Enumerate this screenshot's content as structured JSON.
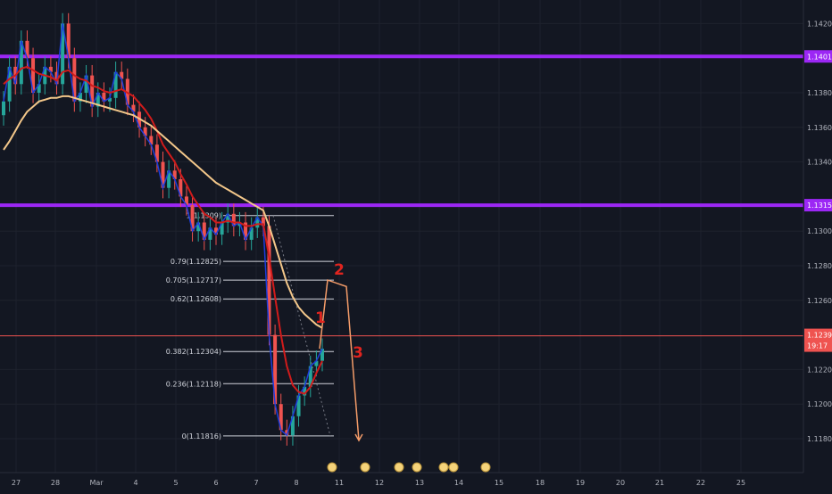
{
  "chart_data": {
    "type": "candlestick",
    "symbol_hint": "EURUSD",
    "price_axis": {
      "ticks": [
        "1.14200",
        "1.13800",
        "1.13600",
        "1.13400",
        "1.13000",
        "1.12800",
        "1.12600",
        "1.12200",
        "1.12000",
        "1.11800"
      ],
      "ylim": [
        1.117,
        1.143
      ]
    },
    "time_axis": {
      "ticks": [
        "27",
        "28",
        "Mar",
        "4",
        "5",
        "6",
        "7",
        "8",
        "11",
        "12",
        "13",
        "14",
        "15",
        "18",
        "19",
        "20",
        "21",
        "22",
        "25"
      ]
    },
    "horizontal_levels": [
      {
        "price": 1.1401,
        "color": "#9c27f5",
        "label": "1.14010"
      },
      {
        "price": 1.1315,
        "color": "#9c27f5",
        "label": "1.13150"
      }
    ],
    "current_price": {
      "value": "1.12395",
      "countdown": "19:17",
      "color": "#ef5350"
    },
    "fibonacci": {
      "levels": [
        {
          "ratio": "1",
          "price": 1.1309,
          "label": "1(1.1309)"
        },
        {
          "ratio": "0.79",
          "price": 1.12825,
          "label": "0.79(1.12825)"
        },
        {
          "ratio": "0.705",
          "price": 1.12717,
          "label": "0.705(1.12717)"
        },
        {
          "ratio": "0.62",
          "price": 1.12608,
          "label": "0.62(1.12608)"
        },
        {
          "ratio": "0.382",
          "price": 1.12304,
          "label": "0.382(1.12304)"
        },
        {
          "ratio": "0.236",
          "price": 1.12118,
          "label": "0.236(1.12118)"
        },
        {
          "ratio": "0",
          "price": 1.11816,
          "label": "0(1.11816)"
        }
      ]
    },
    "series": [
      {
        "name": "",
        "color": "#1e3ddb",
        "close": [
          1.1375,
          1.1395,
          1.1385,
          1.141,
          1.14,
          1.138,
          1.1385,
          1.1395,
          1.1392,
          1.1385,
          1.142,
          1.14,
          1.1375,
          1.138,
          1.139,
          1.1372,
          1.138,
          1.1375,
          1.1377,
          1.1392,
          1.1388,
          1.1373,
          1.1369,
          1.136,
          1.1355,
          1.135,
          1.134,
          1.1325,
          1.1335,
          1.133,
          1.132,
          1.1315,
          1.13,
          1.1305,
          1.1295,
          1.1302,
          1.1298,
          1.1305,
          1.131,
          1.1303,
          1.1305,
          1.1295,
          1.1302,
          1.1308,
          1.1303,
          1.124,
          1.12,
          1.1185,
          1.1182,
          1.1193,
          1.1205,
          1.121,
          1.1222,
          1.1225,
          1.1232
        ]
      },
      {
        "name": "",
        "color": "#d11b1b",
        "values": [
          1.1385,
          1.1388,
          1.139,
          1.1394,
          1.1395,
          1.1393,
          1.1391,
          1.139,
          1.1389,
          1.1387,
          1.1392,
          1.1393,
          1.139,
          1.1388,
          1.1387,
          1.1384,
          1.1383,
          1.1381,
          1.138,
          1.1381,
          1.1382,
          1.138,
          1.1378,
          1.1374,
          1.137,
          1.1365,
          1.1358,
          1.135,
          1.1345,
          1.134,
          1.1333,
          1.1327,
          1.132,
          1.1315,
          1.131,
          1.1308,
          1.1305,
          1.1305,
          1.1306,
          1.1305,
          1.1305,
          1.1303,
          1.1303,
          1.1304,
          1.1304,
          1.1285,
          1.1262,
          1.124,
          1.1222,
          1.1211,
          1.1207,
          1.1206,
          1.121,
          1.1218,
          1.1225
        ]
      },
      {
        "name": "",
        "color": "#f3c78a",
        "values": [
          1.1347,
          1.1352,
          1.1358,
          1.1364,
          1.1369,
          1.1372,
          1.1375,
          1.1376,
          1.1377,
          1.1377,
          1.1378,
          1.1378,
          1.1377,
          1.1376,
          1.1375,
          1.1374,
          1.1373,
          1.1372,
          1.1371,
          1.137,
          1.1369,
          1.1368,
          1.1367,
          1.1365,
          1.1363,
          1.1361,
          1.1358,
          1.1355,
          1.1352,
          1.1349,
          1.1346,
          1.1343,
          1.134,
          1.1337,
          1.1334,
          1.1331,
          1.1328,
          1.1326,
          1.1324,
          1.1322,
          1.132,
          1.1318,
          1.1316,
          1.1314,
          1.1312,
          1.1303,
          1.1292,
          1.1281,
          1.127,
          1.1262,
          1.1256,
          1.1252,
          1.1249,
          1.1246,
          1.1244
        ]
      }
    ],
    "projection": {
      "color": "#f49c69",
      "points": [
        [
          1.1232,
          "1"
        ],
        [
          1.12717,
          "2"
        ],
        [
          1.1268,
          ""
        ],
        [
          1.1179,
          "3"
        ]
      ]
    }
  }
}
